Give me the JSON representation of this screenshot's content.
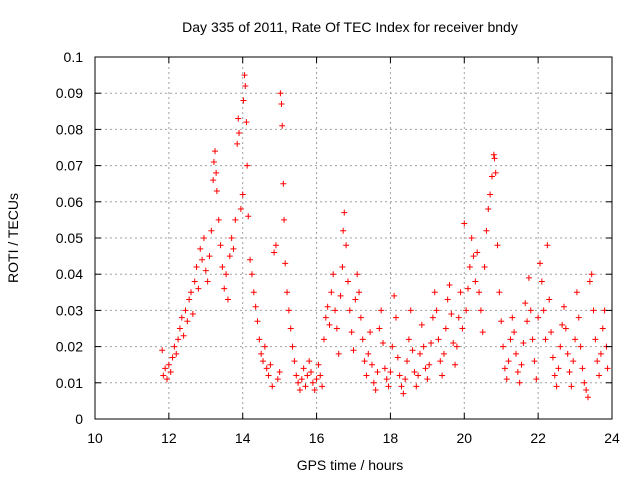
{
  "chart_data": {
    "type": "scatter",
    "title": "Day 335 of 2011, Rate Of TEC Index for receiver bndy",
    "xlabel": "GPS time / hours",
    "ylabel": "ROTI / TECUs",
    "xlim": [
      10,
      24
    ],
    "ylim": [
      0,
      0.1
    ],
    "x_ticks": [
      10,
      12,
      14,
      16,
      18,
      20,
      22,
      24
    ],
    "x_tick_labels": [
      "10",
      "12",
      "14",
      "16",
      "18",
      "20",
      "22",
      "24"
    ],
    "y_ticks": [
      0,
      0.01,
      0.02,
      0.03,
      0.04,
      0.05,
      0.06,
      0.07,
      0.08,
      0.09,
      0.1
    ],
    "y_tick_labels": [
      "0",
      "0.01",
      "0.02",
      "0.03",
      "0.04",
      "0.05",
      "0.06",
      "0.07",
      "0.08",
      "0.09",
      "0.1"
    ],
    "grid": true,
    "marker": "plus",
    "color": "#ff0000",
    "series": [
      {
        "points": [
          [
            11.82,
            0.019
          ],
          [
            11.85,
            0.012
          ],
          [
            11.9,
            0.014
          ],
          [
            11.95,
            0.011
          ],
          [
            12.0,
            0.015
          ],
          [
            12.05,
            0.013
          ],
          [
            12.1,
            0.017
          ],
          [
            12.15,
            0.02
          ],
          [
            12.2,
            0.018
          ],
          [
            12.25,
            0.022
          ],
          [
            12.3,
            0.025
          ],
          [
            12.35,
            0.028
          ],
          [
            12.4,
            0.023
          ],
          [
            12.45,
            0.03
          ],
          [
            12.5,
            0.027
          ],
          [
            12.55,
            0.033
          ],
          [
            12.6,
            0.035
          ],
          [
            12.65,
            0.029
          ],
          [
            12.7,
            0.038
          ],
          [
            12.75,
            0.042
          ],
          [
            12.8,
            0.036
          ],
          [
            12.85,
            0.047
          ],
          [
            12.9,
            0.044
          ],
          [
            12.95,
            0.05
          ],
          [
            13.0,
            0.041
          ],
          [
            13.05,
            0.038
          ],
          [
            13.1,
            0.045
          ],
          [
            13.15,
            0.052
          ],
          [
            13.2,
            0.066
          ],
          [
            13.22,
            0.071
          ],
          [
            13.25,
            0.074
          ],
          [
            13.28,
            0.068
          ],
          [
            13.3,
            0.063
          ],
          [
            13.35,
            0.055
          ],
          [
            13.4,
            0.048
          ],
          [
            13.45,
            0.042
          ],
          [
            13.5,
            0.036
          ],
          [
            13.55,
            0.04
          ],
          [
            13.6,
            0.033
          ],
          [
            13.65,
            0.045
          ],
          [
            13.7,
            0.05
          ],
          [
            13.75,
            0.047
          ],
          [
            13.8,
            0.055
          ],
          [
            13.85,
            0.076
          ],
          [
            13.88,
            0.083
          ],
          [
            13.9,
            0.079
          ],
          [
            13.95,
            0.058
          ],
          [
            14.0,
            0.062
          ],
          [
            14.02,
            0.088
          ],
          [
            14.05,
            0.095
          ],
          [
            14.07,
            0.092
          ],
          [
            14.1,
            0.082
          ],
          [
            14.12,
            0.07
          ],
          [
            14.15,
            0.056
          ],
          [
            14.2,
            0.044
          ],
          [
            14.25,
            0.04
          ],
          [
            14.3,
            0.035
          ],
          [
            14.35,
            0.031
          ],
          [
            14.4,
            0.027
          ],
          [
            14.45,
            0.022
          ],
          [
            14.5,
            0.018
          ],
          [
            14.55,
            0.016
          ],
          [
            14.6,
            0.02
          ],
          [
            14.65,
            0.014
          ],
          [
            14.7,
            0.012
          ],
          [
            14.75,
            0.015
          ],
          [
            14.8,
            0.009
          ],
          [
            14.85,
            0.046
          ],
          [
            14.9,
            0.048
          ],
          [
            14.95,
            0.011
          ],
          [
            15.0,
            0.013
          ],
          [
            15.02,
            0.09
          ],
          [
            15.05,
            0.087
          ],
          [
            15.07,
            0.081
          ],
          [
            15.1,
            0.065
          ],
          [
            15.12,
            0.055
          ],
          [
            15.15,
            0.043
          ],
          [
            15.2,
            0.035
          ],
          [
            15.25,
            0.03
          ],
          [
            15.3,
            0.025
          ],
          [
            15.35,
            0.02
          ],
          [
            15.4,
            0.016
          ],
          [
            15.45,
            0.012
          ],
          [
            15.5,
            0.01
          ],
          [
            15.55,
            0.008
          ],
          [
            15.6,
            0.011
          ],
          [
            15.65,
            0.014
          ],
          [
            15.7,
            0.009
          ],
          [
            15.75,
            0.012
          ],
          [
            15.8,
            0.016
          ],
          [
            15.85,
            0.013
          ],
          [
            15.9,
            0.01
          ],
          [
            15.95,
            0.008
          ],
          [
            16.0,
            0.011
          ],
          [
            16.05,
            0.015
          ],
          [
            16.1,
            0.012
          ],
          [
            16.15,
            0.009
          ],
          [
            16.2,
            0.022
          ],
          [
            16.25,
            0.028
          ],
          [
            16.3,
            0.031
          ],
          [
            16.35,
            0.026
          ],
          [
            16.4,
            0.035
          ],
          [
            16.45,
            0.04
          ],
          [
            16.5,
            0.03
          ],
          [
            16.55,
            0.025
          ],
          [
            16.6,
            0.018
          ],
          [
            16.65,
            0.034
          ],
          [
            16.7,
            0.042
          ],
          [
            16.72,
            0.052
          ],
          [
            16.75,
            0.057
          ],
          [
            16.8,
            0.048
          ],
          [
            16.85,
            0.038
          ],
          [
            16.9,
            0.03
          ],
          [
            16.95,
            0.024
          ],
          [
            17.0,
            0.019
          ],
          [
            17.05,
            0.033
          ],
          [
            17.1,
            0.04
          ],
          [
            17.15,
            0.035
          ],
          [
            17.2,
            0.028
          ],
          [
            17.25,
            0.022
          ],
          [
            17.3,
            0.016
          ],
          [
            17.35,
            0.012
          ],
          [
            17.4,
            0.018
          ],
          [
            17.45,
            0.024
          ],
          [
            17.5,
            0.015
          ],
          [
            17.55,
            0.01
          ],
          [
            17.6,
            0.008
          ],
          [
            17.65,
            0.013
          ],
          [
            17.7,
            0.025
          ],
          [
            17.75,
            0.03
          ],
          [
            17.8,
            0.021
          ],
          [
            17.85,
            0.014
          ],
          [
            17.9,
            0.011
          ],
          [
            17.95,
            0.009
          ],
          [
            18.0,
            0.013
          ],
          [
            18.05,
            0.02
          ],
          [
            18.1,
            0.034
          ],
          [
            18.15,
            0.028
          ],
          [
            18.2,
            0.017
          ],
          [
            18.25,
            0.012
          ],
          [
            18.3,
            0.009
          ],
          [
            18.35,
            0.007
          ],
          [
            18.4,
            0.011
          ],
          [
            18.45,
            0.016
          ],
          [
            18.5,
            0.022
          ],
          [
            18.55,
            0.03
          ],
          [
            18.6,
            0.019
          ],
          [
            18.65,
            0.013
          ],
          [
            18.7,
            0.009
          ],
          [
            18.75,
            0.012
          ],
          [
            18.8,
            0.018
          ],
          [
            18.85,
            0.026
          ],
          [
            18.9,
            0.02
          ],
          [
            18.95,
            0.014
          ],
          [
            19.0,
            0.011
          ],
          [
            19.05,
            0.015
          ],
          [
            19.1,
            0.021
          ],
          [
            19.15,
            0.028
          ],
          [
            19.2,
            0.035
          ],
          [
            19.25,
            0.03
          ],
          [
            19.3,
            0.022
          ],
          [
            19.35,
            0.016
          ],
          [
            19.4,
            0.012
          ],
          [
            19.45,
            0.018
          ],
          [
            19.5,
            0.025
          ],
          [
            19.55,
            0.033
          ],
          [
            19.6,
            0.037
          ],
          [
            19.65,
            0.029
          ],
          [
            19.7,
            0.021
          ],
          [
            19.75,
            0.015
          ],
          [
            19.8,
            0.02
          ],
          [
            19.85,
            0.028
          ],
          [
            19.9,
            0.035
          ],
          [
            19.95,
            0.025
          ],
          [
            20.0,
            0.054
          ],
          [
            20.05,
            0.03
          ],
          [
            20.1,
            0.036
          ],
          [
            20.15,
            0.042
          ],
          [
            20.2,
            0.05
          ],
          [
            20.25,
            0.045
          ],
          [
            20.3,
            0.038
          ],
          [
            20.35,
            0.046
          ],
          [
            20.4,
            0.035
          ],
          [
            20.45,
            0.03
          ],
          [
            20.5,
            0.024
          ],
          [
            20.55,
            0.042
          ],
          [
            20.6,
            0.052
          ],
          [
            20.65,
            0.058
          ],
          [
            20.7,
            0.062
          ],
          [
            20.75,
            0.067
          ],
          [
            20.8,
            0.073
          ],
          [
            20.82,
            0.072
          ],
          [
            20.85,
            0.068
          ],
          [
            20.9,
            0.048
          ],
          [
            20.95,
            0.035
          ],
          [
            21.0,
            0.027
          ],
          [
            21.05,
            0.02
          ],
          [
            21.1,
            0.014
          ],
          [
            21.15,
            0.011
          ],
          [
            21.2,
            0.016
          ],
          [
            21.25,
            0.022
          ],
          [
            21.3,
            0.028
          ],
          [
            21.35,
            0.024
          ],
          [
            21.4,
            0.018
          ],
          [
            21.45,
            0.013
          ],
          [
            21.5,
            0.01
          ],
          [
            21.55,
            0.015
          ],
          [
            21.6,
            0.021
          ],
          [
            21.65,
            0.032
          ],
          [
            21.7,
            0.027
          ],
          [
            21.75,
            0.039
          ],
          [
            21.8,
            0.03
          ],
          [
            21.85,
            0.022
          ],
          [
            21.9,
            0.016
          ],
          [
            21.95,
            0.011
          ],
          [
            22.0,
            0.028
          ],
          [
            22.05,
            0.043
          ],
          [
            22.1,
            0.038
          ],
          [
            22.15,
            0.03
          ],
          [
            22.2,
            0.022
          ],
          [
            22.25,
            0.048
          ],
          [
            22.3,
            0.033
          ],
          [
            22.35,
            0.024
          ],
          [
            22.4,
            0.017
          ],
          [
            22.45,
            0.012
          ],
          [
            22.5,
            0.009
          ],
          [
            22.55,
            0.014
          ],
          [
            22.6,
            0.02
          ],
          [
            22.65,
            0.026
          ],
          [
            22.7,
            0.031
          ],
          [
            22.75,
            0.025
          ],
          [
            22.8,
            0.018
          ],
          [
            22.85,
            0.013
          ],
          [
            22.9,
            0.009
          ],
          [
            22.95,
            0.016
          ],
          [
            23.0,
            0.022
          ],
          [
            23.05,
            0.035
          ],
          [
            23.1,
            0.028
          ],
          [
            23.15,
            0.02
          ],
          [
            23.2,
            0.014
          ],
          [
            23.25,
            0.01
          ],
          [
            23.3,
            0.008
          ],
          [
            23.35,
            0.006
          ],
          [
            23.4,
            0.038
          ],
          [
            23.45,
            0.04
          ],
          [
            23.5,
            0.03
          ],
          [
            23.55,
            0.022
          ],
          [
            23.6,
            0.016
          ],
          [
            23.65,
            0.012
          ],
          [
            23.7,
            0.018
          ],
          [
            23.75,
            0.025
          ],
          [
            23.8,
            0.03
          ],
          [
            23.85,
            0.02
          ],
          [
            23.88,
            0.014
          ]
        ]
      }
    ]
  }
}
